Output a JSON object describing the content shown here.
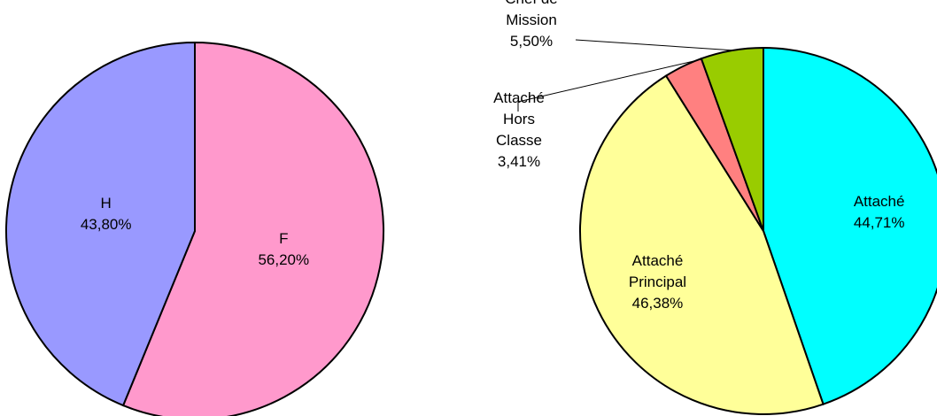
{
  "chart_data": [
    {
      "type": "pie",
      "categories": [
        "F",
        "H"
      ],
      "values": [
        56.2,
        43.8
      ],
      "value_labels": [
        "56,20%",
        "43,80%"
      ],
      "colors": [
        "#ff99cc",
        "#9999ff"
      ]
    },
    {
      "type": "pie",
      "categories": [
        "Attaché",
        "Attaché\nPrincipal",
        "Attaché\nHors\nClasse",
        "Chef de\nMission"
      ],
      "values": [
        44.71,
        46.38,
        3.41,
        5.5
      ],
      "value_labels": [
        "44,71%",
        "46,38%",
        "3,41%",
        "5,50%"
      ],
      "colors": [
        "#00ffff",
        "#ffff99",
        "#ff8080",
        "#99cc00"
      ]
    }
  ]
}
